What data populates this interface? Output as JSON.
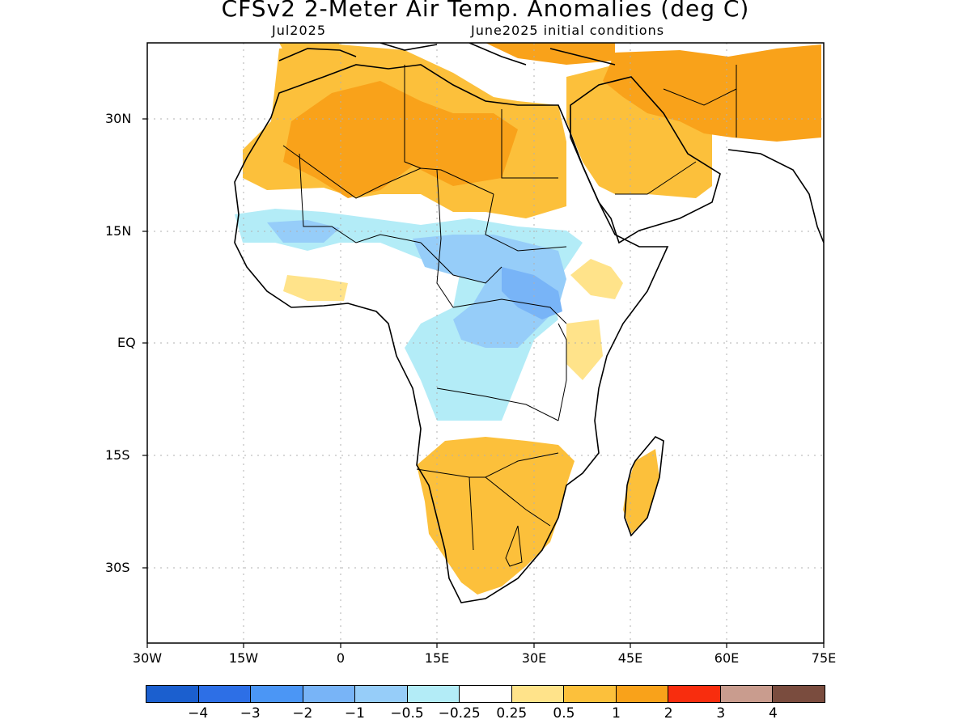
{
  "header": {
    "title": "CFSv2 2-Meter Air Temp. Anomalies (deg C)",
    "subtitle_left": "Jul2025",
    "subtitle_right": "June2025 initial conditions"
  },
  "map": {
    "lat_labels": [
      "30N",
      "15N",
      "EQ",
      "15S",
      "30S"
    ],
    "lon_labels": [
      "30W",
      "15W",
      "0",
      "15E",
      "30E",
      "45E",
      "60E",
      "75E"
    ],
    "colors": {
      "neg4": "#1b5fcf",
      "neg3": "#2d6fe6",
      "neg2": "#4b96f5",
      "neg1": "#78b4f7",
      "neg05": "#96cdf9",
      "neg025": "#b3ecf7",
      "neutral": "#ffffff",
      "pos025": "#ffe38a",
      "pos05": "#fcc03b",
      "pos1": "#f9a21a",
      "pos2": "#f82d0e",
      "pos3": "#c99c8e",
      "pos4": "#7a4c3e",
      "coastline": "#000000",
      "grid": "#b0b0b0"
    }
  },
  "colorbar": {
    "colors": [
      "#1b5fcf",
      "#2d6fe6",
      "#4b96f5",
      "#78b4f7",
      "#96cdf9",
      "#b3ecf7",
      "#ffffff",
      "#ffe38a",
      "#fcc03b",
      "#f9a21a",
      "#f82d0e",
      "#c99c8e",
      "#7a4c3e"
    ],
    "labels": [
      "−4",
      "−3",
      "−2",
      "−1",
      "−0.5",
      "−0.25",
      "0.25",
      "0.5",
      "1",
      "2",
      "3",
      "4"
    ]
  }
}
